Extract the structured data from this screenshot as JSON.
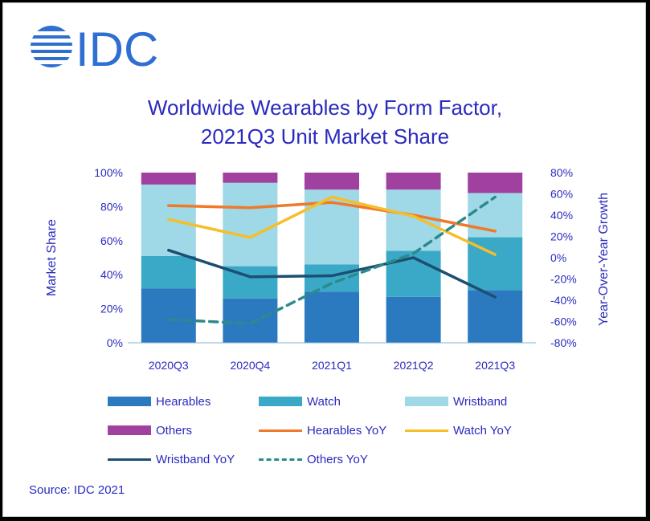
{
  "brand": {
    "logo_text": "IDC",
    "color": "#2f6fd1"
  },
  "chart_data": {
    "type": "bar",
    "title": [
      "Worldwide Wearables by Form Factor,",
      "2021Q3 Unit Market Share"
    ],
    "categories": [
      "2020Q3",
      "2020Q4",
      "2021Q1",
      "2021Q2",
      "2021Q3"
    ],
    "ylabel": "Market Share",
    "y2label": "Year-Over-Year  Growth",
    "ylim": [
      0,
      100
    ],
    "y2lim": [
      -80,
      80
    ],
    "yticks": [
      "0%",
      "20%",
      "40%",
      "60%",
      "80%",
      "100%"
    ],
    "y2ticks": [
      "-80%",
      "-60%",
      "-40%",
      "-20%",
      "0%",
      "20%",
      "40%",
      "60%",
      "80%"
    ],
    "stacked": true,
    "series": [
      {
        "name": "Hearables",
        "kind": "bar",
        "color": "#2b7ac0",
        "values": [
          32,
          26,
          30,
          27,
          31
        ]
      },
      {
        "name": "Watch",
        "kind": "bar",
        "color": "#3aa9c8",
        "values": [
          19,
          19,
          16,
          27,
          31
        ]
      },
      {
        "name": "Wristband",
        "kind": "bar",
        "color": "#9fd8e6",
        "values": [
          42,
          49,
          44,
          36,
          26
        ]
      },
      {
        "name": "Others",
        "kind": "bar",
        "color": "#a0419f",
        "values": [
          7,
          6,
          10,
          10,
          12
        ]
      },
      {
        "name": "Hearables YoY",
        "kind": "line",
        "axis": "y2",
        "color": "#ef7a2a",
        "dash": false,
        "values": [
          49,
          47,
          52,
          40,
          25
        ]
      },
      {
        "name": "Watch YoY",
        "kind": "line",
        "axis": "y2",
        "color": "#f5be2a",
        "dash": false,
        "values": [
          36,
          19,
          57,
          39,
          3
        ]
      },
      {
        "name": "Wristband YoY",
        "kind": "line",
        "axis": "y2",
        "color": "#1c4f72",
        "dash": false,
        "values": [
          7,
          -18,
          -17,
          0,
          -37
        ]
      },
      {
        "name": "Others YoY",
        "kind": "line",
        "axis": "y2",
        "color": "#2c8a8c",
        "dash": true,
        "values": [
          -58,
          -62,
          -24,
          4,
          57
        ]
      }
    ],
    "legend": "bottom"
  },
  "source": "Source: IDC 2021"
}
